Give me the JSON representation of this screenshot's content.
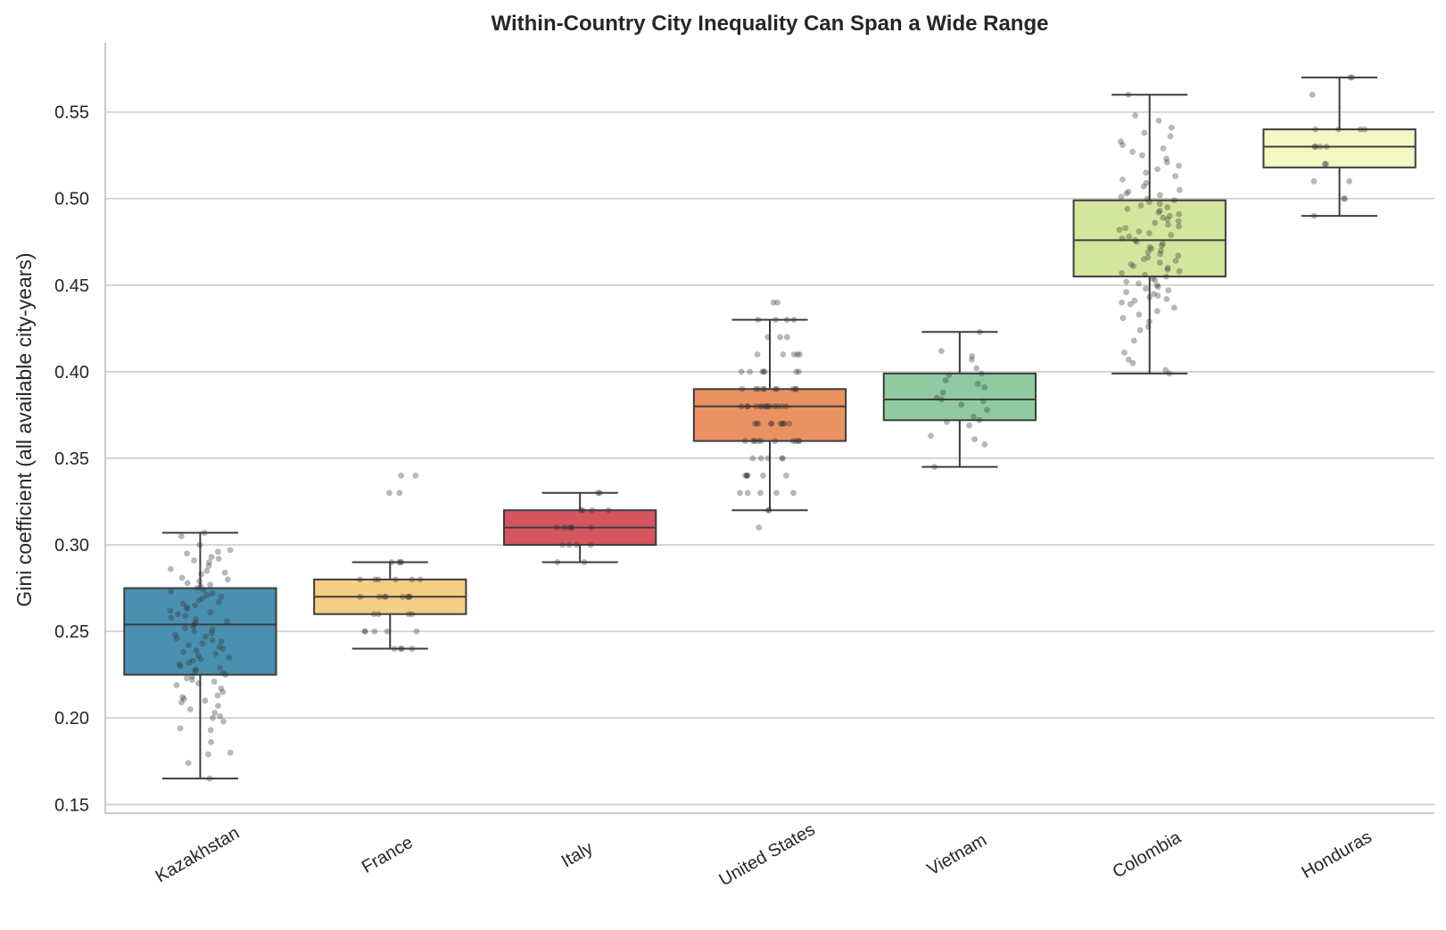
{
  "chart_data": {
    "type": "box",
    "title": "Within-Country City Inequality Can Span a Wide Range",
    "xlabel": "",
    "ylabel": "Gini coefficient (all available city-years)",
    "ylim": [
      0.145,
      0.59
    ],
    "yticks": [
      0.15,
      0.2,
      0.25,
      0.3,
      0.35,
      0.4,
      0.45,
      0.5,
      0.55
    ],
    "ytick_labels": [
      "0.15",
      "0.20",
      "0.25",
      "0.30",
      "0.35",
      "0.40",
      "0.45",
      "0.50",
      "0.55"
    ],
    "grid": true,
    "categories": [
      "Kazakhstan",
      "France",
      "Italy",
      "United States",
      "Vietnam",
      "Colombia",
      "Honduras"
    ],
    "boxes": [
      {
        "name": "Kazakhstan",
        "color": "#4a90b0",
        "whisker_low": 0.165,
        "q1": 0.225,
        "median": 0.254,
        "q3": 0.275,
        "whisker_high": 0.307,
        "points": [
          0.165,
          0.174,
          0.179,
          0.18,
          0.186,
          0.193,
          0.194,
          0.198,
          0.2,
          0.201,
          0.203,
          0.205,
          0.207,
          0.209,
          0.21,
          0.211,
          0.212,
          0.213,
          0.215,
          0.217,
          0.219,
          0.22,
          0.221,
          0.222,
          0.223,
          0.224,
          0.225,
          0.226,
          0.227,
          0.228,
          0.229,
          0.23,
          0.231,
          0.232,
          0.233,
          0.234,
          0.235,
          0.236,
          0.237,
          0.238,
          0.239,
          0.24,
          0.241,
          0.242,
          0.243,
          0.244,
          0.245,
          0.246,
          0.247,
          0.248,
          0.249,
          0.25,
          0.251,
          0.252,
          0.253,
          0.254,
          0.255,
          0.256,
          0.257,
          0.258,
          0.259,
          0.26,
          0.261,
          0.262,
          0.263,
          0.264,
          0.265,
          0.266,
          0.267,
          0.268,
          0.269,
          0.27,
          0.271,
          0.272,
          0.273,
          0.274,
          0.275,
          0.276,
          0.277,
          0.278,
          0.279,
          0.28,
          0.281,
          0.283,
          0.284,
          0.285,
          0.286,
          0.288,
          0.29,
          0.291,
          0.292,
          0.293,
          0.295,
          0.296,
          0.297,
          0.3,
          0.305,
          0.307
        ]
      },
      {
        "name": "France",
        "color": "#f5cd85",
        "whisker_low": 0.24,
        "q1": 0.26,
        "median": 0.27,
        "q3": 0.28,
        "whisker_high": 0.29,
        "points": [
          0.24,
          0.24,
          0.24,
          0.24,
          0.25,
          0.25,
          0.25,
          0.25,
          0.25,
          0.26,
          0.26,
          0.26,
          0.26,
          0.27,
          0.27,
          0.27,
          0.27,
          0.27,
          0.27,
          0.27,
          0.27,
          0.28,
          0.28,
          0.28,
          0.28,
          0.28,
          0.28,
          0.29,
          0.29,
          0.29,
          0.29,
          0.33,
          0.33,
          0.34,
          0.34
        ]
      },
      {
        "name": "Italy",
        "color": "#d55660",
        "whisker_low": 0.29,
        "q1": 0.3,
        "median": 0.31,
        "q3": 0.32,
        "whisker_high": 0.33,
        "points": [
          0.29,
          0.29,
          0.3,
          0.3,
          0.3,
          0.3,
          0.31,
          0.31,
          0.31,
          0.31,
          0.31,
          0.31,
          0.32,
          0.32,
          0.32,
          0.32,
          0.33,
          0.33
        ]
      },
      {
        "name": "United States",
        "color": "#ea9262",
        "whisker_low": 0.32,
        "q1": 0.36,
        "median": 0.38,
        "q3": 0.39,
        "whisker_high": 0.43,
        "points": [
          0.31,
          0.32,
          0.32,
          0.33,
          0.33,
          0.33,
          0.33,
          0.33,
          0.34,
          0.34,
          0.34,
          0.34,
          0.34,
          0.34,
          0.35,
          0.35,
          0.35,
          0.35,
          0.35,
          0.36,
          0.36,
          0.36,
          0.36,
          0.36,
          0.36,
          0.36,
          0.36,
          0.36,
          0.36,
          0.37,
          0.37,
          0.37,
          0.37,
          0.37,
          0.37,
          0.37,
          0.37,
          0.37,
          0.37,
          0.38,
          0.38,
          0.38,
          0.38,
          0.38,
          0.38,
          0.38,
          0.38,
          0.38,
          0.38,
          0.38,
          0.38,
          0.38,
          0.38,
          0.39,
          0.39,
          0.39,
          0.39,
          0.39,
          0.39,
          0.39,
          0.39,
          0.39,
          0.39,
          0.4,
          0.4,
          0.4,
          0.4,
          0.4,
          0.4,
          0.4,
          0.41,
          0.41,
          0.41,
          0.41,
          0.41,
          0.42,
          0.42,
          0.42,
          0.43,
          0.43,
          0.43,
          0.43,
          0.44,
          0.44
        ]
      },
      {
        "name": "Vietnam",
        "color": "#8fcaa1",
        "whisker_low": 0.345,
        "q1": 0.372,
        "median": 0.384,
        "q3": 0.399,
        "whisker_high": 0.423,
        "points": [
          0.345,
          0.358,
          0.361,
          0.363,
          0.369,
          0.371,
          0.372,
          0.374,
          0.378,
          0.381,
          0.383,
          0.384,
          0.385,
          0.388,
          0.391,
          0.393,
          0.395,
          0.398,
          0.399,
          0.402,
          0.407,
          0.409,
          0.412,
          0.423
        ]
      },
      {
        "name": "Colombia",
        "color": "#d4e69e",
        "whisker_low": 0.399,
        "q1": 0.455,
        "median": 0.476,
        "q3": 0.499,
        "whisker_high": 0.56,
        "points": [
          0.399,
          0.401,
          0.405,
          0.407,
          0.411,
          0.418,
          0.424,
          0.426,
          0.429,
          0.431,
          0.433,
          0.435,
          0.437,
          0.439,
          0.44,
          0.441,
          0.442,
          0.443,
          0.444,
          0.445,
          0.446,
          0.447,
          0.448,
          0.449,
          0.45,
          0.451,
          0.452,
          0.453,
          0.454,
          0.455,
          0.456,
          0.457,
          0.458,
          0.459,
          0.46,
          0.461,
          0.462,
          0.463,
          0.464,
          0.465,
          0.466,
          0.467,
          0.468,
          0.469,
          0.47,
          0.471,
          0.472,
          0.473,
          0.474,
          0.475,
          0.476,
          0.477,
          0.478,
          0.479,
          0.48,
          0.481,
          0.482,
          0.483,
          0.484,
          0.485,
          0.486,
          0.487,
          0.488,
          0.489,
          0.49,
          0.491,
          0.492,
          0.493,
          0.494,
          0.495,
          0.496,
          0.497,
          0.498,
          0.499,
          0.5,
          0.501,
          0.502,
          0.503,
          0.504,
          0.505,
          0.507,
          0.509,
          0.511,
          0.513,
          0.515,
          0.517,
          0.519,
          0.521,
          0.523,
          0.525,
          0.527,
          0.529,
          0.531,
          0.533,
          0.536,
          0.538,
          0.541,
          0.545,
          0.548,
          0.56
        ]
      },
      {
        "name": "Honduras",
        "color": "#f5f7c2",
        "whisker_low": 0.49,
        "q1": 0.518,
        "median": 0.53,
        "q3": 0.54,
        "whisker_high": 0.57,
        "points": [
          0.49,
          0.5,
          0.5,
          0.51,
          0.51,
          0.52,
          0.52,
          0.53,
          0.53,
          0.53,
          0.53,
          0.54,
          0.54,
          0.54,
          0.54,
          0.56,
          0.57,
          0.57
        ]
      }
    ]
  }
}
